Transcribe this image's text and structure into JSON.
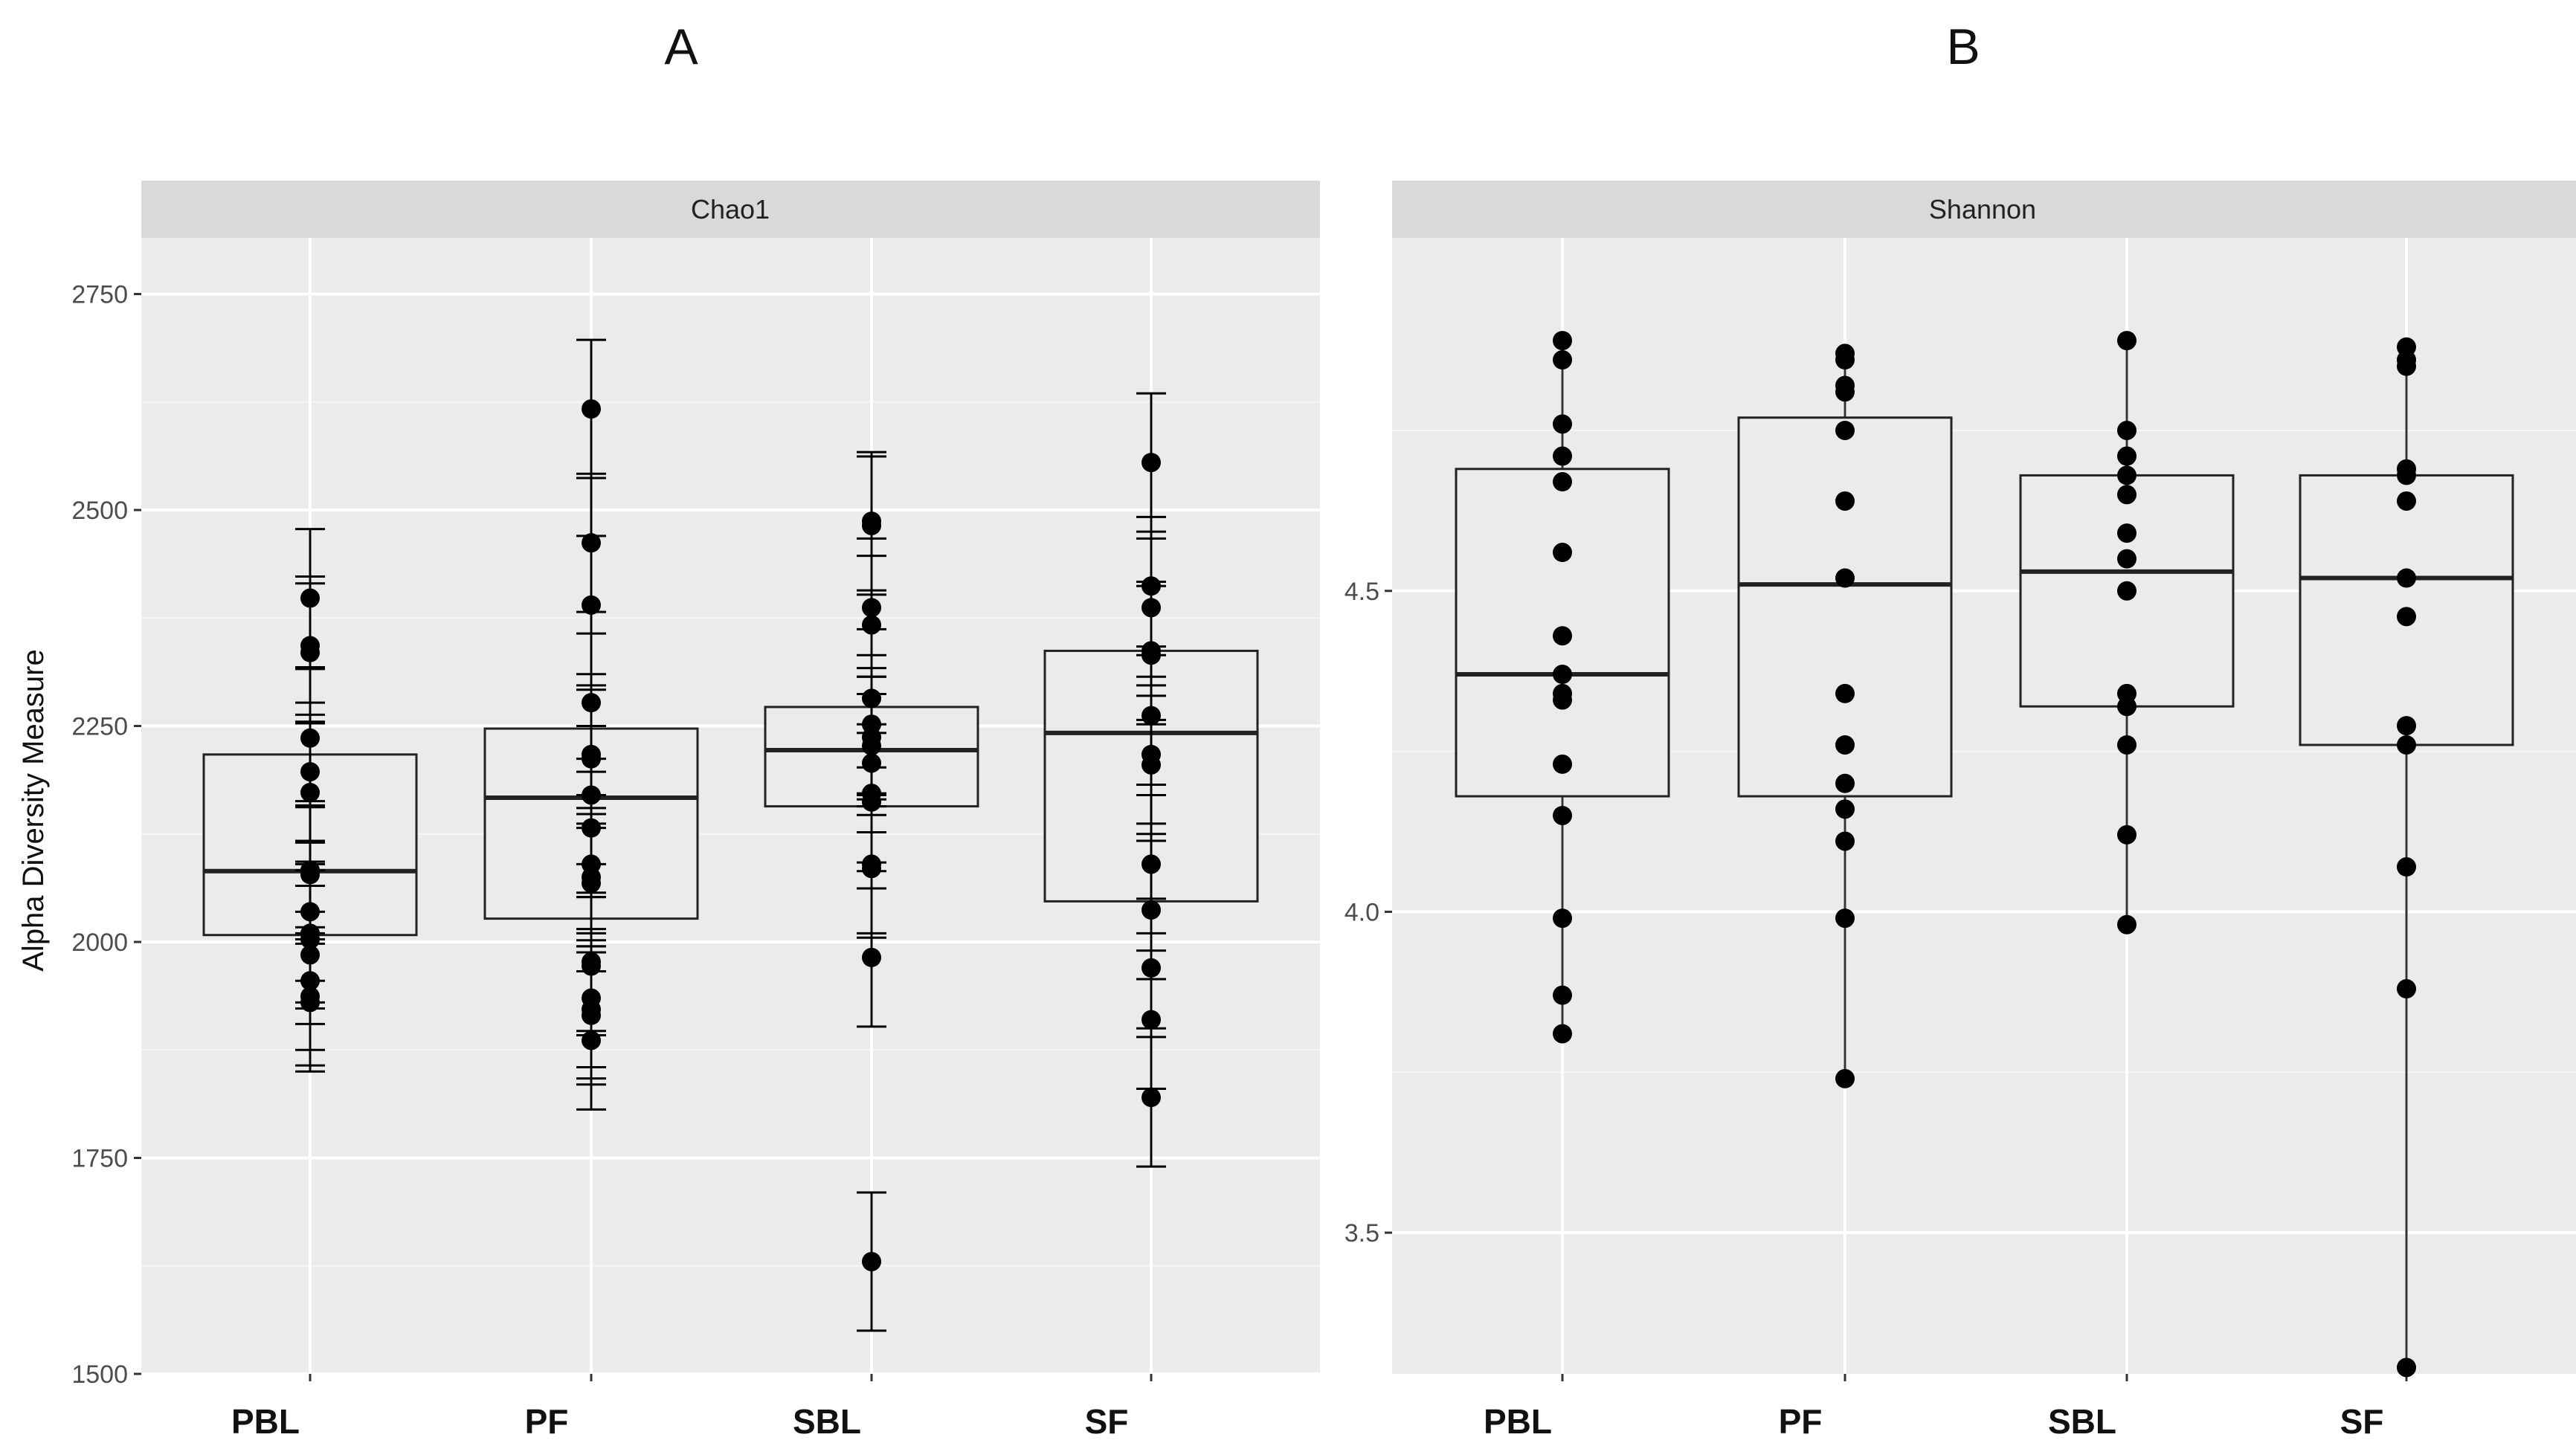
{
  "chart_data": [
    {
      "panel_label": "A",
      "type": "boxplot",
      "facet": "Chao1",
      "ylabel": "Alpha Diversity Measure",
      "xlabel": "",
      "ylim": [
        1500,
        2815
      ],
      "yticks": [
        1500,
        1750,
        2000,
        2250,
        2500,
        2750
      ],
      "ytick_labels": [
        "1500",
        "1750",
        "2000",
        "2250",
        "2500",
        "2750"
      ],
      "grid": true,
      "categories": [
        "PBL",
        "PF",
        "SBL",
        "SF"
      ],
      "boxes": [
        {
          "q1": 2008,
          "median": 2082,
          "q3": 2217,
          "whisker_low": 1930,
          "whisker_high": 2400
        },
        {
          "q1": 2027,
          "median": 2167,
          "q3": 2247,
          "whisker_low": 1886,
          "whisker_high": 2617
        },
        {
          "q1": 2157,
          "median": 2222,
          "q3": 2272,
          "whisker_low": 1982,
          "whisker_high": 2487
        },
        {
          "q1": 2047,
          "median": 2242,
          "q3": 2337,
          "whisker_low": 1818,
          "whisker_high": 2555
        }
      ],
      "points": [
        [
          2398,
          2343,
          2335,
          2236,
          2197,
          2173,
          2083,
          2078,
          2035,
          2010,
          2003,
          1985,
          1955,
          1937,
          1930
        ],
        [
          2617,
          2462,
          2390,
          2277,
          2217,
          2212,
          2170,
          2132,
          2090,
          2075,
          2068,
          1977,
          1972,
          1935,
          1922,
          1915,
          1886
        ],
        [
          2487,
          2482,
          2387,
          2367,
          2282,
          2252,
          2237,
          2227,
          2207,
          2172,
          2162,
          2090,
          2085,
          1982,
          1630
        ],
        [
          2555,
          2412,
          2387,
          2337,
          2332,
          2262,
          2217,
          2205,
          2090,
          2037,
          1970,
          1910,
          1820
        ]
      ],
      "error_bar_half_width": 80
    },
    {
      "panel_label": "B",
      "type": "boxplot",
      "facet": "Shannon",
      "ylabel": "",
      "xlabel": "",
      "ylim": [
        3.28,
        5.05
      ],
      "yticks": [
        3.5,
        4.0,
        4.5
      ],
      "ytick_labels": [
        "3.5",
        "4.0",
        "4.5"
      ],
      "grid": true,
      "categories": [
        "PBL",
        "PF",
        "SBL",
        "SF"
      ],
      "boxes": [
        {
          "q1": 4.18,
          "median": 4.37,
          "q3": 4.69,
          "whisker_low": 3.81,
          "whisker_high": 4.89
        },
        {
          "q1": 4.18,
          "median": 4.51,
          "q3": 4.77,
          "whisker_low": 3.74,
          "whisker_high": 4.87
        },
        {
          "q1": 4.32,
          "median": 4.53,
          "q3": 4.68,
          "whisker_low": 3.98,
          "whisker_high": 4.89
        },
        {
          "q1": 4.26,
          "median": 4.52,
          "q3": 4.68,
          "whisker_low": 3.29,
          "whisker_high": 4.88
        }
      ],
      "points": [
        [
          4.89,
          4.86,
          4.76,
          4.71,
          4.67,
          4.56,
          4.43,
          4.37,
          4.34,
          4.33,
          4.23,
          4.15,
          3.99,
          3.87,
          3.81
        ],
        [
          4.87,
          4.86,
          4.82,
          4.81,
          4.75,
          4.64,
          4.52,
          4.34,
          4.26,
          4.2,
          4.16,
          4.11,
          3.99,
          3.74
        ],
        [
          4.89,
          4.75,
          4.71,
          4.68,
          4.65,
          4.59,
          4.55,
          4.5,
          4.34,
          4.32,
          4.26,
          4.12,
          3.98
        ],
        [
          4.88,
          4.86,
          4.85,
          4.69,
          4.68,
          4.64,
          4.52,
          4.46,
          4.29,
          4.26,
          4.07,
          3.88,
          3.29
        ]
      ]
    }
  ]
}
